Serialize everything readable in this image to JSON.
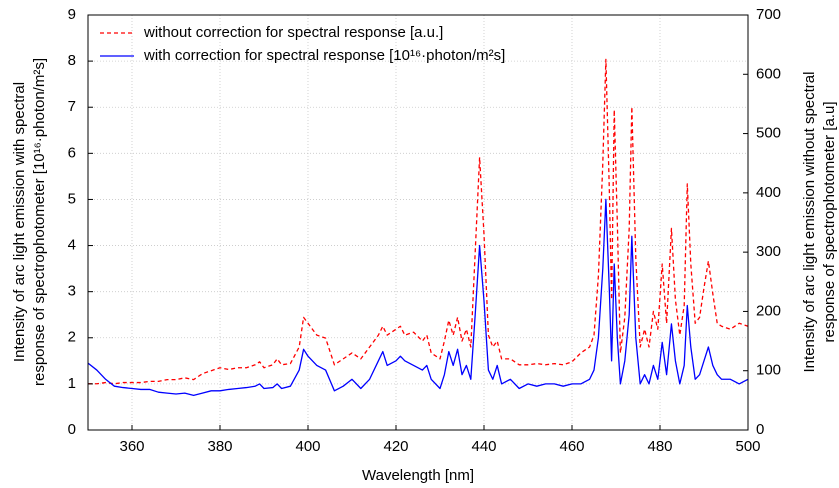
{
  "chart_data": {
    "type": "line",
    "xlabel": "Wavelength [nm]",
    "ylabel": [
      "Intensity of arc light emission with spectral",
      "response of spectrophotometer [10¹⁶·photon/m²s]"
    ],
    "y2label": [
      "Intensity of arc light emission without spectral",
      "response of spectrophotometer [a.u]"
    ],
    "xlim": [
      350,
      500
    ],
    "xticks": [
      360,
      380,
      400,
      420,
      440,
      460,
      480,
      500
    ],
    "ylim": [
      0,
      9
    ],
    "yticks": [
      0,
      1,
      2,
      3,
      4,
      5,
      6,
      7,
      8,
      9
    ],
    "y2lim": [
      0,
      700
    ],
    "y2ticks": [
      0,
      100,
      200,
      300,
      400,
      500,
      600,
      700
    ],
    "grid": true,
    "legend": "upper left",
    "x": [
      350,
      352,
      354,
      356,
      358,
      360,
      362,
      364,
      366,
      368,
      370,
      372,
      374,
      376,
      378,
      380,
      382,
      384,
      386,
      388,
      389,
      390,
      392,
      393,
      394,
      396,
      398,
      399,
      400,
      401,
      402,
      404,
      406,
      408,
      410,
      412,
      414,
      416,
      417,
      418,
      420,
      421,
      422,
      424,
      426,
      427,
      428,
      430,
      431,
      432,
      433,
      434,
      435,
      436,
      437,
      438,
      439,
      440,
      441,
      442,
      443,
      444,
      446,
      448,
      450,
      452,
      454,
      456,
      458,
      460,
      462,
      464,
      465,
      466,
      467,
      467.7,
      468.5,
      469,
      469.6,
      470.3,
      471,
      472,
      473,
      473.6,
      474.5,
      475.5,
      476.5,
      477.5,
      478.5,
      479.5,
      480.5,
      481.5,
      482.6,
      483.5,
      484.5,
      485.5,
      486.2,
      487,
      488,
      489,
      490,
      491,
      492,
      493,
      494,
      496,
      498,
      500
    ],
    "series": [
      {
        "name": "without correction for spectral response [a.u.]",
        "color": "#ff0000",
        "dash": true,
        "axis": "y2",
        "values": [
          78,
          78,
          80,
          78,
          80,
          80,
          80,
          82,
          82,
          85,
          85,
          88,
          85,
          95,
          100,
          105,
          102,
          105,
          105,
          110,
          115,
          105,
          110,
          120,
          110,
          112,
          140,
          190,
          180,
          170,
          160,
          155,
          110,
          120,
          130,
          120,
          140,
          160,
          175,
          160,
          170,
          175,
          160,
          165,
          150,
          160,
          130,
          120,
          150,
          185,
          160,
          190,
          150,
          170,
          140,
          300,
          460,
          330,
          160,
          140,
          150,
          120,
          120,
          110,
          110,
          112,
          110,
          112,
          110,
          115,
          130,
          140,
          160,
          260,
          450,
          625,
          400,
          220,
          540,
          350,
          130,
          190,
          340,
          545,
          290,
          140,
          170,
          140,
          200,
          170,
          280,
          180,
          340,
          220,
          160,
          210,
          415,
          280,
          180,
          190,
          240,
          285,
          230,
          180,
          175,
          170,
          180,
          175
        ]
      },
      {
        "name": "with correction for spectral response [10¹⁶·photon/m²s]",
        "color": "#0000ff",
        "dash": false,
        "values": [
          1.45,
          1.3,
          1.1,
          0.95,
          0.92,
          0.9,
          0.88,
          0.88,
          0.82,
          0.8,
          0.78,
          0.8,
          0.75,
          0.8,
          0.85,
          0.85,
          0.88,
          0.9,
          0.92,
          0.95,
          1.0,
          0.9,
          0.92,
          1.0,
          0.9,
          0.95,
          1.3,
          1.75,
          1.6,
          1.5,
          1.4,
          1.3,
          0.85,
          0.95,
          1.1,
          0.9,
          1.1,
          1.5,
          1.7,
          1.4,
          1.5,
          1.6,
          1.5,
          1.4,
          1.3,
          1.4,
          1.1,
          0.9,
          1.2,
          1.7,
          1.4,
          1.75,
          1.2,
          1.4,
          1.1,
          2.5,
          4.0,
          2.8,
          1.3,
          1.1,
          1.4,
          1.0,
          1.1,
          0.9,
          1.0,
          0.95,
          1.0,
          1.0,
          0.95,
          1.0,
          1.0,
          1.1,
          1.3,
          2.0,
          3.5,
          5.0,
          3.0,
          1.5,
          3.6,
          2.0,
          1.0,
          1.5,
          2.5,
          4.2,
          2.0,
          1.0,
          1.2,
          1.0,
          1.4,
          1.1,
          1.9,
          1.2,
          2.3,
          1.5,
          1.0,
          1.4,
          2.7,
          1.8,
          1.1,
          1.2,
          1.5,
          1.8,
          1.4,
          1.2,
          1.1,
          1.1,
          1.0,
          1.1
        ]
      }
    ]
  }
}
